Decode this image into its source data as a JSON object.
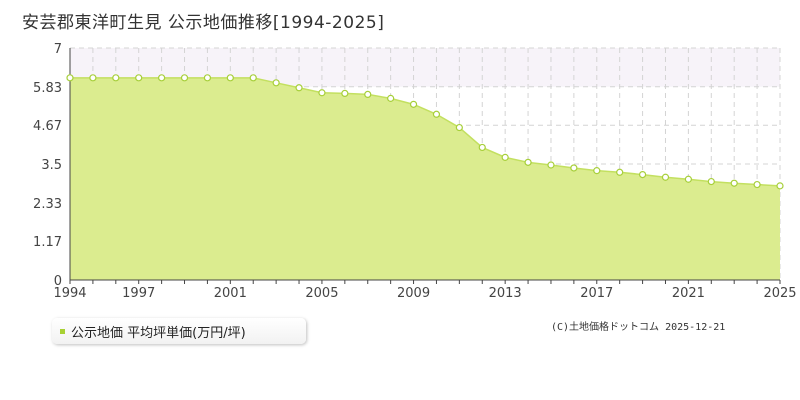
{
  "title": "安芸郡東洋町生見 公示地価推移[1994-2025]",
  "legend": {
    "label": "公示地価 平均坪単価(万円/坪)"
  },
  "credit": "(C)土地価格ドットコム 2025-12-21",
  "colors": {
    "fill": "#dbec8f",
    "line": "#c3e060",
    "point_fill": "#ffffff",
    "point_stroke": "#a7cf3a",
    "grid": "#d4d4d4",
    "highlight_band": "#f7f3f9",
    "axis": "#444444",
    "legend_swatch": "#a8d133"
  },
  "chart_data": {
    "type": "area",
    "title": "安芸郡東洋町生見 公示地価推移[1994-2025]",
    "xlabel": "",
    "ylabel": "",
    "xlim": [
      1994,
      2025
    ],
    "ylim": [
      0,
      7
    ],
    "y_ticks": [
      "0",
      "1.17",
      "2.33",
      "3.5",
      "4.67",
      "5.83",
      "7"
    ],
    "x_ticks": [
      1994,
      1997,
      2001,
      2005,
      2009,
      2013,
      2017,
      2021,
      2025
    ],
    "grid": true,
    "highlight_band": [
      5.83,
      7
    ],
    "legend_position": "bottom-left",
    "series": [
      {
        "name": "公示地価 平均坪単価(万円/坪)",
        "x": [
          1994,
          1995,
          1996,
          1997,
          1998,
          1999,
          2000,
          2001,
          2002,
          2003,
          2004,
          2005,
          2006,
          2007,
          2008,
          2009,
          2010,
          2011,
          2012,
          2013,
          2014,
          2015,
          2016,
          2017,
          2018,
          2019,
          2020,
          2021,
          2022,
          2023,
          2024,
          2025
        ],
        "values": [
          6.1,
          6.1,
          6.1,
          6.1,
          6.1,
          6.1,
          6.1,
          6.1,
          6.1,
          5.95,
          5.8,
          5.65,
          5.63,
          5.6,
          5.48,
          5.3,
          5.0,
          4.6,
          4.0,
          3.7,
          3.55,
          3.47,
          3.38,
          3.3,
          3.25,
          3.18,
          3.1,
          3.04,
          2.97,
          2.92,
          2.88,
          2.84
        ]
      }
    ]
  }
}
